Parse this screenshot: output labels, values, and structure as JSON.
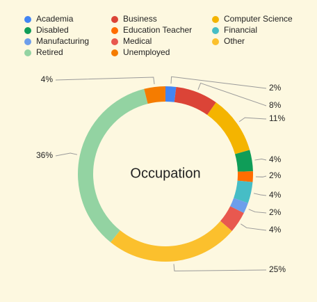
{
  "chart_data": {
    "type": "donut",
    "title": "Occupation",
    "categories": [
      "Academia",
      "Business",
      "Computer Science",
      "Disabled",
      "Education Teacher",
      "Financial",
      "Manufacturing",
      "Medical",
      "Other",
      "Retired",
      "Unemployed"
    ],
    "values": [
      2,
      8,
      11,
      4,
      2,
      4,
      2,
      4,
      25,
      36,
      4
    ],
    "value_labels": [
      "2%",
      "8%",
      "11%",
      "4%",
      "2%",
      "4%",
      "2%",
      "4%",
      "25%",
      "36%",
      "4%"
    ],
    "colors": [
      "#4285f4",
      "#db4437",
      "#f4b400",
      "#0f9d58",
      "#ff6d00",
      "#46bdc6",
      "#6d9eeb",
      "#e8584f",
      "#fbc02d",
      "#93d3a2",
      "#f57c00"
    ],
    "legend": "top"
  }
}
